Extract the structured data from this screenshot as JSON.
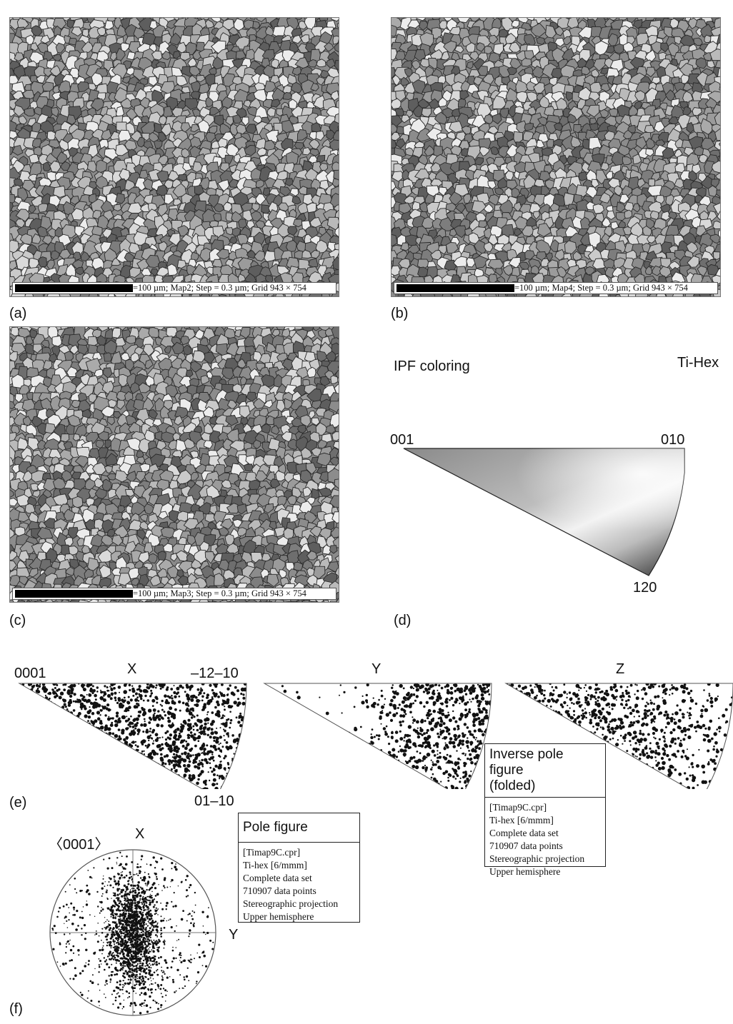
{
  "panels": {
    "a": {
      "label": "(a)",
      "scale_text": "=100 µm; Map2; Step = 0.3 µm; Grid 943 × 754"
    },
    "b": {
      "label": "(b)",
      "scale_text": "=100 µm; Map4; Step = 0.3 µm; Grid 943 × 754"
    },
    "c": {
      "label": "(c)",
      "scale_text": "=100 µm; Map3; Step = 0.3 µm; Grid 943 × 754"
    },
    "d": {
      "label": "(d)",
      "title": "IPF coloring",
      "phase": "Ti-Hex",
      "corner_001": "001",
      "corner_010": "010",
      "corner_120": "120"
    },
    "e": {
      "label": "(e)",
      "corner_0001": "0001",
      "corner_m12m10": "–12–10",
      "corner_01m10": "01–10",
      "axis_x": "X",
      "axis_y": "Y",
      "axis_z": "Z"
    },
    "f": {
      "label": "(f)",
      "pole": "〈0001〉",
      "axis_x": "X",
      "axis_y": "Y"
    }
  },
  "pole_figure_box": {
    "title": "Pole figure",
    "lines": [
      "[Timap9C.cpr]",
      "Ti-hex [6/mmm]",
      "Complete data set",
      "710907 data points",
      "Stereographic projection",
      "Upper hemisphere"
    ]
  },
  "ipf_box": {
    "title_line1": "Inverse pole figure",
    "title_line2": "(folded)",
    "lines": [
      "[Timap9C.cpr]",
      "Ti-hex [6/mmm]",
      "Complete data set",
      "710907 data points",
      "Stereographic projection",
      "Upper hemisphere"
    ]
  },
  "colors": {
    "grain_boundary": "#2a2a2a",
    "background": "#ffffff"
  }
}
